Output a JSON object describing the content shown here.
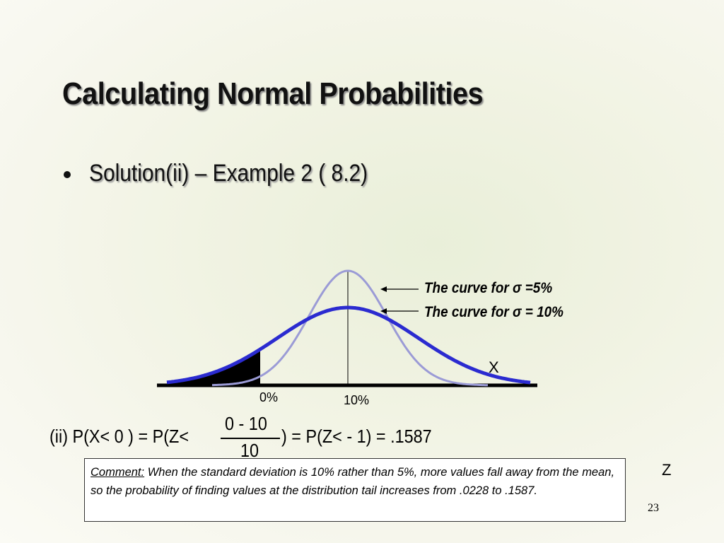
{
  "header": {
    "title": "Calculating Normal Probabilities"
  },
  "bullet": "Solution(ii) – Example 2 ( 8.2)",
  "diagram": {
    "narrow_label": "The curve for σ =5%",
    "wide_label": "The curve for σ = 10%",
    "x_axis_label": "X",
    "left_tick": "0%",
    "mean_tick": "10%",
    "z_label": "Z"
  },
  "formula": {
    "left": "(ii)  P(X< 0 ) = P(Z<",
    "numerator": "0 - 10",
    "denominator": "10",
    "right": ") = P(Z< - 1) = .1587"
  },
  "comment": {
    "label": "Comment:",
    "text": "When the standard deviation is 10% rather than 5%, more values fall away from the mean, so the probability of finding values at the distribution tail increases from .0228 to .1587."
  },
  "page_number": "23"
}
